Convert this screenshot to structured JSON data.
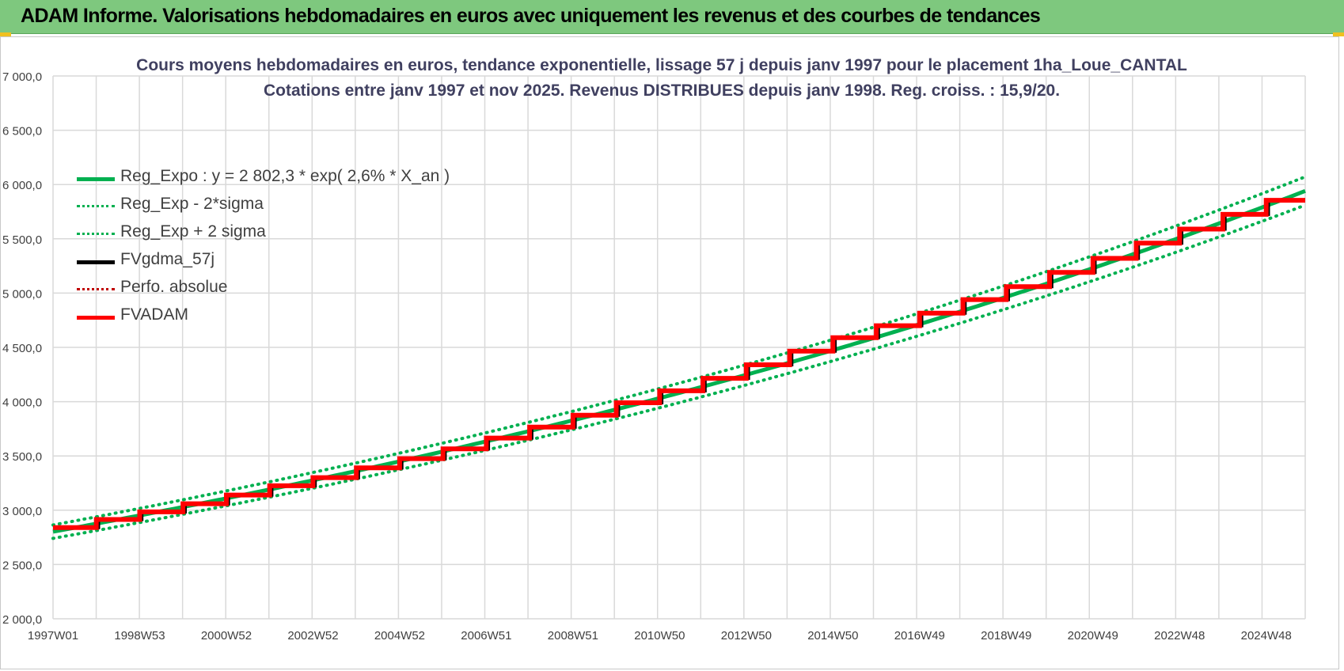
{
  "banner": {
    "title": "ADAM Informe. Valorisations hebdomadaires en euros avec uniquement les revenus et des courbes de tendances"
  },
  "colors": {
    "banner_bg": "#7ec87e",
    "trend_green": "#00b050",
    "black": "#000000",
    "red": "#ff0000",
    "grid": "#d9d9d9",
    "axis_text": "#404040"
  },
  "chart_data": {
    "type": "line",
    "title": "Cours moyens hebdomadaires en euros, tendance exponentielle, lissage 57 j depuis janv 1997 pour le placement 1ha_Loue_CANTAL",
    "subtitle": "Cotations entre janv 1997 et nov 2025. Revenus DISTRIBUES depuis janv 1998. Reg. croiss. : 15,9/20.",
    "xlabel": "",
    "ylabel": "",
    "x_range": [
      1997.0,
      2025.9
    ],
    "ylim": [
      2000,
      7000
    ],
    "y_ticks": [
      "2 000,0",
      "2 500,0",
      "3 000,0",
      "3 500,0",
      "4 000,0",
      "4 500,0",
      "5 000,0",
      "5 500,0",
      "6 000,0",
      "6 500,0",
      "7 000,0"
    ],
    "x_tick_labels": [
      "1997W01",
      "1998W53",
      "2000W52",
      "2002W52",
      "2004W52",
      "2006W51",
      "2008W51",
      "2010W50",
      "2012W50",
      "2014W50",
      "2016W49",
      "2018W49",
      "2020W49",
      "2022W48",
      "2024W48"
    ],
    "grid": true,
    "legend_position": "top-left",
    "regression": {
      "a": 2802.3,
      "rate": 0.026,
      "sigma_factor": 0.022
    },
    "series": [
      {
        "name": "Reg_Expo : y = 2 802,3 * exp( 2,6% *  X_an )",
        "style": "solid",
        "color": "#00b050",
        "kind": "reg"
      },
      {
        "name": "Reg_Exp - 2*sigma",
        "style": "dotted",
        "color": "#00b050",
        "kind": "reg_low"
      },
      {
        "name": "Reg_Exp + 2 sigma",
        "style": "dotted",
        "color": "#00b050",
        "kind": "reg_high"
      },
      {
        "name": "FVgdma_57j",
        "style": "solid",
        "color": "#000000",
        "kind": "smooth"
      },
      {
        "name": "Perfo. absolue",
        "style": "dotted",
        "color": "#c00000",
        "kind": "none"
      },
      {
        "name": "FVADAM",
        "style": "solid",
        "color": "#ff0000",
        "kind": "steps"
      }
    ],
    "step_values": [
      {
        "year": 1997,
        "value": 2840
      },
      {
        "year": 1998,
        "value": 2915
      },
      {
        "year": 1999,
        "value": 2985
      },
      {
        "year": 2000,
        "value": 3060
      },
      {
        "year": 2001,
        "value": 3140
      },
      {
        "year": 2002,
        "value": 3225
      },
      {
        "year": 2003,
        "value": 3300
      },
      {
        "year": 2004,
        "value": 3390
      },
      {
        "year": 2005,
        "value": 3475
      },
      {
        "year": 2006,
        "value": 3565
      },
      {
        "year": 2007,
        "value": 3665
      },
      {
        "year": 2008,
        "value": 3765
      },
      {
        "year": 2009,
        "value": 3875
      },
      {
        "year": 2010,
        "value": 3990
      },
      {
        "year": 2011,
        "value": 4100
      },
      {
        "year": 2012,
        "value": 4215
      },
      {
        "year": 2013,
        "value": 4340
      },
      {
        "year": 2014,
        "value": 4465
      },
      {
        "year": 2015,
        "value": 4590
      },
      {
        "year": 2016,
        "value": 4700
      },
      {
        "year": 2017,
        "value": 4815
      },
      {
        "year": 2018,
        "value": 4940
      },
      {
        "year": 2019,
        "value": 5060
      },
      {
        "year": 2020,
        "value": 5190
      },
      {
        "year": 2021,
        "value": 5320
      },
      {
        "year": 2022,
        "value": 5460
      },
      {
        "year": 2023,
        "value": 5590
      },
      {
        "year": 2024,
        "value": 5725
      },
      {
        "year": 2025,
        "value": 5855
      }
    ]
  }
}
